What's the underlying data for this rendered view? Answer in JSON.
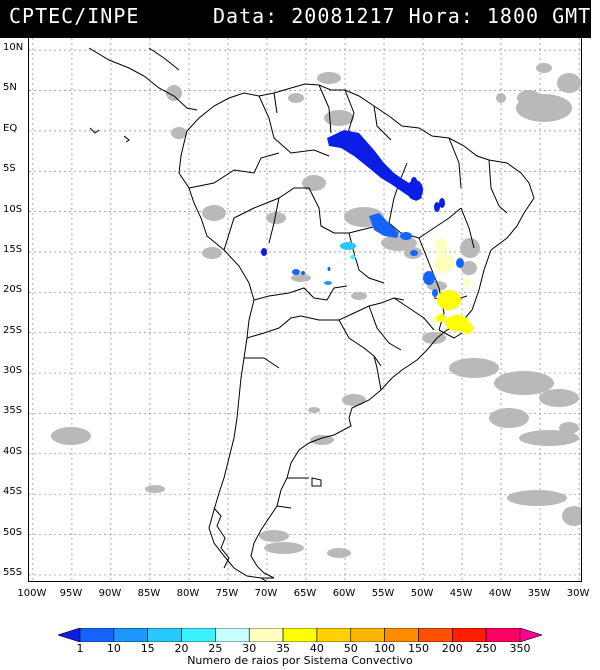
{
  "header": {
    "agency": "CPTEC/INPE",
    "datetime": "Data: 20081217 Hora: 1800 GMT"
  },
  "map": {
    "lat_labels": [
      "10N",
      "5N",
      "EQ",
      "5S",
      "10S",
      "15S",
      "20S",
      "25S",
      "30S",
      "35S",
      "40S",
      "45S",
      "50S",
      "55S"
    ],
    "lon_labels": [
      "100W",
      "95W",
      "90W",
      "85W",
      "80W",
      "75W",
      "70W",
      "65W",
      "60W",
      "55W",
      "50W",
      "45W",
      "40W",
      "35W",
      "30W"
    ],
    "lat_range": [
      11.5,
      -56
    ],
    "lon_range": [
      -100.5,
      -29.5
    ]
  },
  "legend": {
    "labels": [
      "1",
      "10",
      "15",
      "20",
      "25",
      "30",
      "35",
      "40",
      "50",
      "100",
      "150",
      "200",
      "250",
      "350"
    ],
    "colors": [
      "#0a1ee6",
      "#1464ff",
      "#1e96ff",
      "#28c8ff",
      "#3cf0ff",
      "#c8ffff",
      "#ffffbe",
      "#ffff00",
      "#ffd200",
      "#ffb400",
      "#ff8c00",
      "#ff5000",
      "#ff1e00",
      "#ff0064",
      "#ff0096"
    ],
    "title": "Numero de raios por Sistema Convectivo"
  },
  "colors": {
    "cloud": "#b4b4b4",
    "background": "#ffffff",
    "border": "#000000"
  }
}
